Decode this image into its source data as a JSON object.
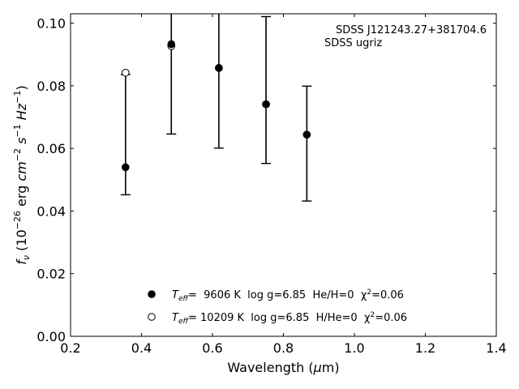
{
  "chart_data": {
    "type": "scatter",
    "xlabel": {
      "pre": "Wavelength (",
      "mu": "μ",
      "post": "m)"
    },
    "ylabel": {
      "f": "f",
      "fsub": "ν",
      "a": " (10",
      "exp1": "−26",
      "b": " erg ",
      "cm": "cm",
      "exp2": "−2",
      "s": " s",
      "exp3": "−1",
      "hz": " Hz",
      "exp4": "−1",
      "c": ")"
    },
    "xlim": [
      0.2,
      1.4
    ],
    "ylim": [
      0.0,
      0.103
    ],
    "xticks": [
      "0.2",
      "0.4",
      "0.6",
      "0.8",
      "1.0",
      "1.2",
      "1.4"
    ],
    "yticks": [
      "0.00",
      "0.02",
      "0.04",
      "0.06",
      "0.08",
      "0.10"
    ],
    "annotation": [
      "SDSS J121243.27+381704.6",
      "SDSS ugriz"
    ],
    "observed": [
      {
        "x": 0.355,
        "y": 0.054,
        "lo": 0.0452,
        "hi": 0.0836
      },
      {
        "x": 0.484,
        "y": 0.0933,
        "lo": 0.0646,
        "hi": 0.111
      },
      {
        "x": 0.618,
        "y": 0.0857,
        "lo": 0.0601,
        "hi": 0.111
      },
      {
        "x": 0.751,
        "y": 0.0741,
        "lo": 0.0552,
        "hi": 0.1021
      },
      {
        "x": 0.866,
        "y": 0.0644,
        "lo": 0.0432,
        "hi": 0.0799
      }
    ],
    "models": [
      {
        "marker": "filled",
        "label": {
          "pre": "T",
          "sub": "eff",
          "mid": "=  9606 K  log g=6.85  He/H=0  χ",
          "sup": "2",
          "post": "=0.06"
        },
        "points": [
          {
            "x": 0.355,
            "y": 0.054
          },
          {
            "x": 0.484,
            "y": 0.0933
          },
          {
            "x": 0.618,
            "y": 0.0857
          },
          {
            "x": 0.751,
            "y": 0.0741
          },
          {
            "x": 0.866,
            "y": 0.0644
          }
        ]
      },
      {
        "marker": "open",
        "label": {
          "pre": "T",
          "sub": "eff",
          "mid": "= 10209 K  log g=6.85  H/He=0  χ",
          "sup": "2",
          "post": "=0.06"
        },
        "points": [
          {
            "x": 0.355,
            "y": 0.0842
          },
          {
            "x": 0.484,
            "y": 0.0927
          },
          {
            "x": 0.618,
            "y": 0.0857
          },
          {
            "x": 0.751,
            "y": 0.0741
          },
          {
            "x": 0.866,
            "y": 0.0644
          }
        ]
      }
    ]
  }
}
